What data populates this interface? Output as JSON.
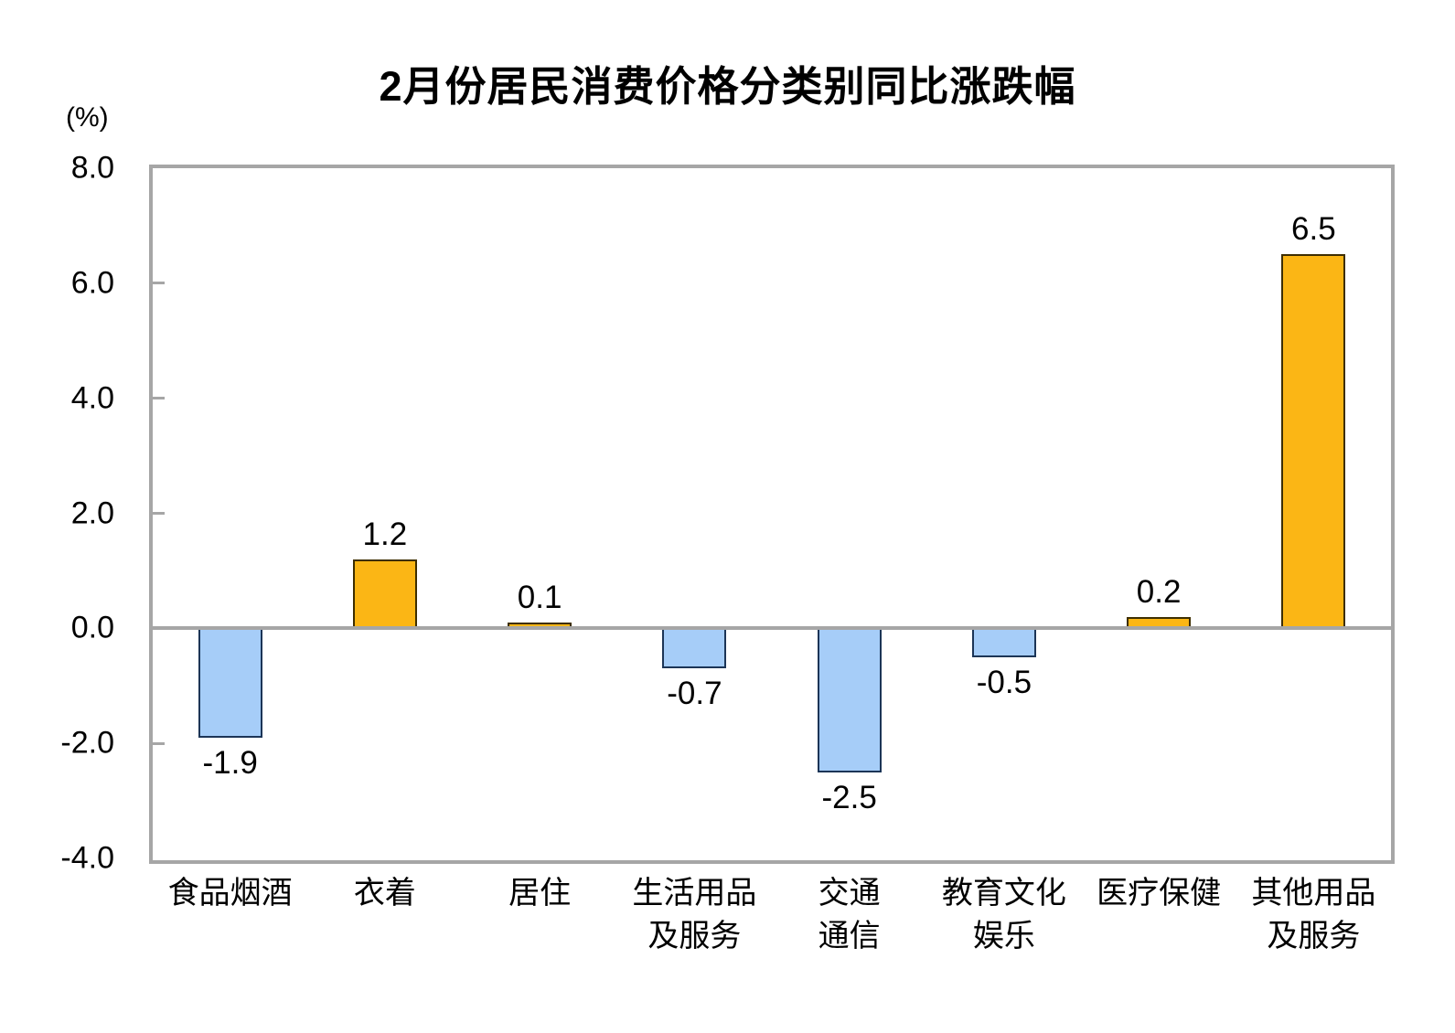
{
  "title": "2月份居民消费价格分类别同比涨跌幅",
  "y_axis": {
    "unit_label": "(%)",
    "ticks": [
      "8.0",
      "6.0",
      "4.0",
      "2.0",
      "0.0",
      "-2.0",
      "-4.0"
    ]
  },
  "chart_data": {
    "type": "bar",
    "title": "2月份居民消费价格分类别同比涨跌幅",
    "ylabel": "(%)",
    "ylim": [
      -4,
      8
    ],
    "grid": false,
    "legend": null,
    "categories": [
      "食品烟酒",
      "衣着",
      "居住",
      "生活用品及服务",
      "交通通信",
      "教育文化娱乐",
      "医疗保健",
      "其他用品及服务"
    ],
    "category_lines": [
      [
        "食品烟酒"
      ],
      [
        "衣着"
      ],
      [
        "居住"
      ],
      [
        "生活用品",
        "及服务"
      ],
      [
        "交通",
        "通信"
      ],
      [
        "教育文化",
        "娱乐"
      ],
      [
        "医疗保健"
      ],
      [
        "其他用品",
        "及服务"
      ]
    ],
    "values": [
      -1.9,
      1.2,
      0.1,
      -0.7,
      -2.5,
      -0.5,
      0.2,
      6.5
    ],
    "data_labels": [
      "-1.9",
      "1.2",
      "0.1",
      "-0.7",
      "-2.5",
      "-0.5",
      "0.2",
      "6.5"
    ],
    "colors": {
      "positive_fill": "#FBB615",
      "positive_border": "#3d2e00",
      "negative_fill": "#A6CDF8",
      "negative_border": "#1c3557",
      "axis": "#a6a6a6",
      "text": "#000000"
    }
  }
}
